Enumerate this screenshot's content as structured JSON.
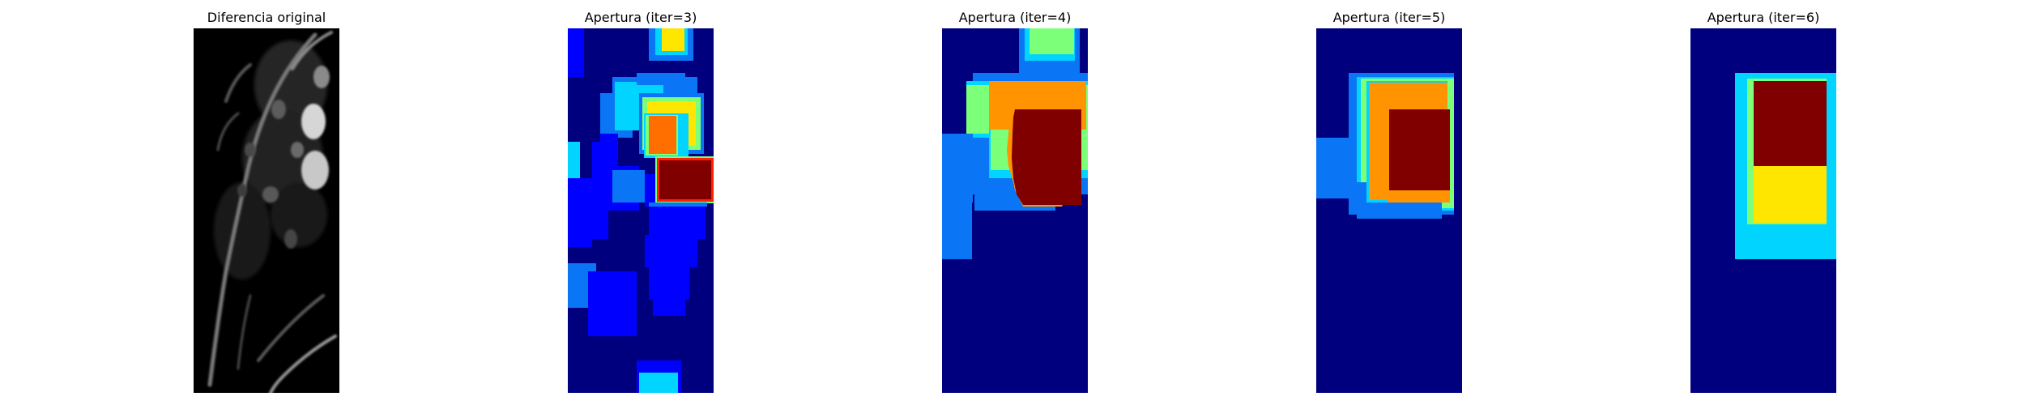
{
  "panels": [
    {
      "title": "Diferencia original",
      "colormap": "gray"
    },
    {
      "title": "Apertura (iter=3)",
      "colormap": "jet"
    },
    {
      "title": "Apertura (iter=4)",
      "colormap": "jet"
    },
    {
      "title": "Apertura (iter=5)",
      "colormap": "jet"
    },
    {
      "title": "Apertura (iter=6)",
      "colormap": "jet"
    }
  ],
  "colors": {
    "jet_background": "#00007f",
    "jet_blue": "#0000ff",
    "jet_mid_blue": "#0a75f5",
    "jet_cyan": "#00d4ff",
    "jet_green": "#7cff79",
    "jet_yellow": "#ffe600",
    "jet_orange": "#ff9400",
    "jet_dark_orange": "#ff6f00",
    "jet_red": "#ff2000",
    "jet_dark_red": "#800000",
    "gray_background": "#000000"
  }
}
